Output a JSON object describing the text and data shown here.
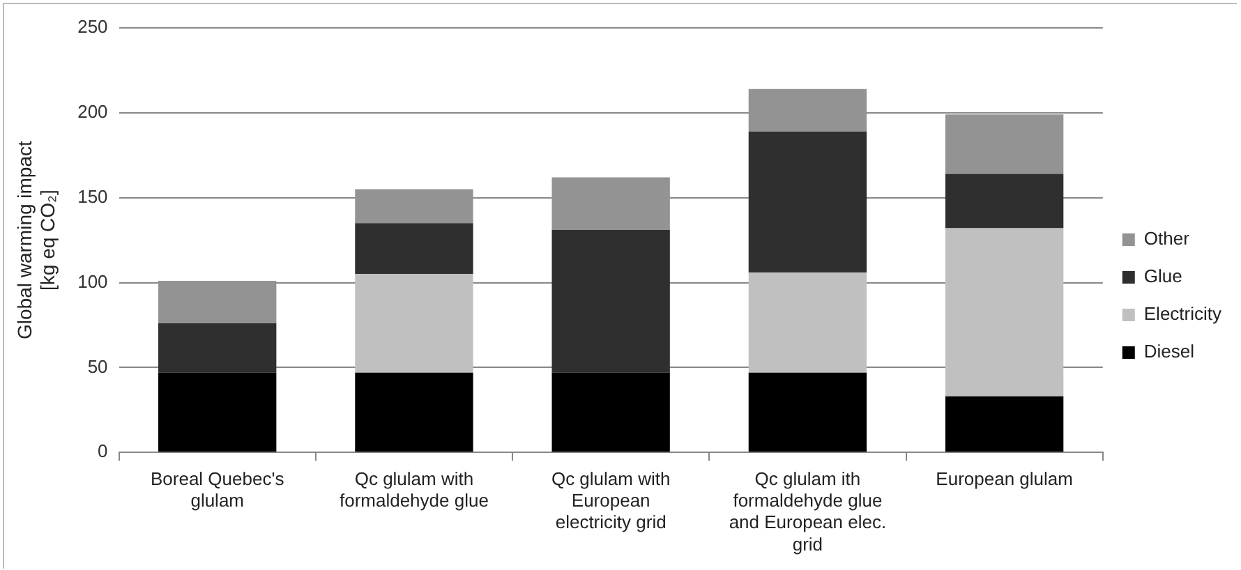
{
  "chart_data": {
    "type": "bar",
    "stacked": true,
    "ylabel": "Global warming impact\n[kg eq CO₂]",
    "categories": [
      "Boreal Quebec's glulam",
      "Qc glulam with formaldehyde glue",
      "Qc glulam with European electricity grid",
      "Qc glulam ith formaldehyde glue and European elec. grid",
      "European glulam"
    ],
    "series": [
      {
        "name": "Diesel",
        "color": "#000000",
        "values": [
          47,
          47,
          47,
          47,
          33
        ]
      },
      {
        "name": "Electricity",
        "color": "#c0c0c0",
        "values": [
          0,
          58,
          0,
          59,
          99
        ]
      },
      {
        "name": "Glue",
        "color": "#2f2f2f",
        "values": [
          29,
          30,
          84,
          83,
          32
        ]
      },
      {
        "name": "Other",
        "color": "#939393",
        "values": [
          25,
          20,
          31,
          25,
          35
        ]
      }
    ],
    "ylim": [
      0,
      250
    ],
    "yticks": [
      0,
      50,
      100,
      150,
      200,
      250
    ],
    "grid": "y",
    "legend": "right"
  }
}
